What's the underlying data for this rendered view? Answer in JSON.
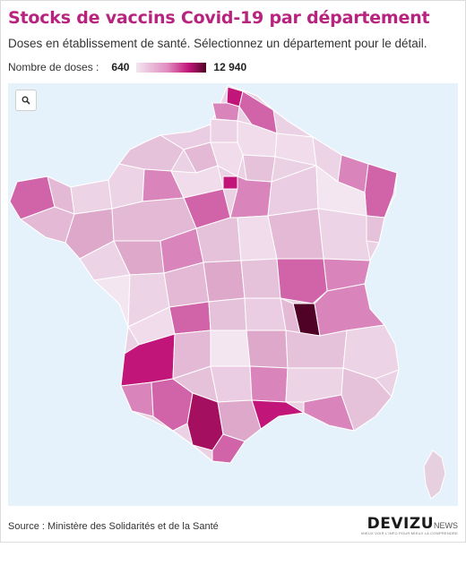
{
  "header": {
    "title": "Stocks de vaccins Covid-19 par département",
    "subtitle": "Doses en établissement de santé. Sélectionnez un département pour le détail."
  },
  "legend": {
    "label": "Nombre de doses :",
    "min": "640",
    "max": "12 940",
    "colors": [
      "#f3e6f0",
      "#e08bbf",
      "#c2157a",
      "#4f0225"
    ]
  },
  "map": {
    "background": "#e6f2fb",
    "zoom_icon": "search-icon"
  },
  "footer": {
    "source": "Source : Ministère des Solidarités et de la Santé"
  },
  "logo": {
    "brand": "DEVIZU",
    "suffix": "NEWS",
    "tagline": "MIEUX VOIR L'INFO POUR MIEUX LA COMPRENDRE"
  }
}
